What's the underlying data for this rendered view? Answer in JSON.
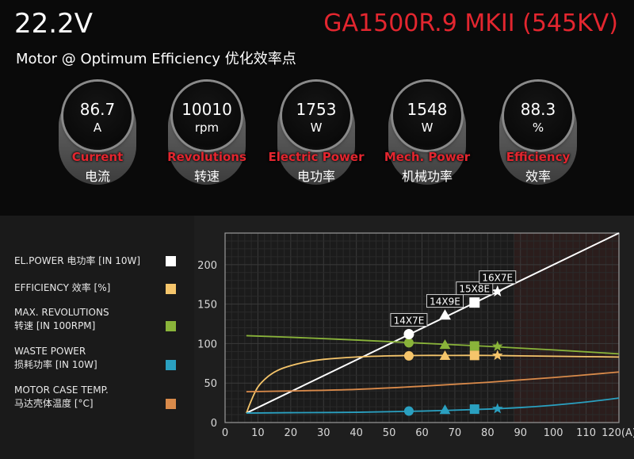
{
  "header": {
    "voltage": "22.2V",
    "model": "GA1500R.9 MKII (545KV)",
    "subtitle": "Motor @ Optimum Efficiency  优化效率点"
  },
  "gauges": [
    {
      "value": "86.7",
      "unit": "A",
      "label_en": "Current",
      "label_cn": "电流"
    },
    {
      "value": "10010",
      "unit": "rpm",
      "label_en": "Revolutions",
      "label_cn": "转速"
    },
    {
      "value": "1753",
      "unit": "W",
      "label_en": "Electric Power",
      "label_cn": "电功率"
    },
    {
      "value": "1548",
      "unit": "W",
      "label_en": "Mech. Power",
      "label_cn": "机械功率"
    },
    {
      "value": "88.3",
      "unit": "%",
      "label_en": "Efficiency",
      "label_cn": "效率"
    }
  ],
  "legend": [
    {
      "line1": "EL.POWER 电功率 [IN 10W]",
      "line2": "",
      "color": "#ffffff"
    },
    {
      "line1": "EFFICIENCY 效率 [%]",
      "line2": "",
      "color": "#f5c56b"
    },
    {
      "line1": "MAX. REVOLUTIONS",
      "line2": "转速 [IN 100RPM]",
      "color": "#8ab43a"
    },
    {
      "line1": "WASTE POWER",
      "line2": "损耗功率 [IN 10W]",
      "color": "#2aa0c0"
    },
    {
      "line1": "MOTOR CASE TEMP.",
      "line2": "马达壳体温度 [°C]",
      "color": "#d98a4a"
    }
  ],
  "chart_data": {
    "type": "line",
    "xlim": [
      0,
      120
    ],
    "ylim": [
      0,
      240
    ],
    "x_ticks": [
      0,
      10,
      20,
      30,
      40,
      50,
      60,
      70,
      80,
      90,
      100,
      110,
      120
    ],
    "x_tick_labels": [
      "0",
      "10",
      "20",
      "30",
      "40",
      "50",
      "60",
      "70",
      "80",
      "90",
      "100",
      "110",
      "120(A)"
    ],
    "y_ticks": [
      0,
      50,
      100,
      150,
      200
    ],
    "grid": true,
    "highlight_region": [
      88,
      120
    ],
    "series": [
      {
        "name": "EL.POWER 电功率 [IN 10W]",
        "color": "#ffffff",
        "x": [
          6.5,
          120
        ],
        "y": [
          12,
          240
        ]
      },
      {
        "name": "EFFICIENCY 效率 [%]",
        "color": "#f5c56b",
        "x": [
          6.5,
          8,
          10,
          13,
          16,
          20,
          25,
          30,
          40,
          50,
          60,
          70,
          80,
          90,
          100,
          110,
          120
        ],
        "y": [
          12,
          28,
          45,
          58,
          66,
          72,
          77,
          80,
          83,
          84.5,
          85,
          85,
          85,
          84.5,
          84,
          83.5,
          83
        ]
      },
      {
        "name": "MAX. REVOLUTIONS 转速 [IN 100RPM]",
        "color": "#8ab43a",
        "x": [
          6.5,
          20,
          40,
          60,
          80,
          100,
          120
        ],
        "y": [
          110,
          108,
          104.5,
          100.5,
          96.5,
          92,
          87
        ]
      },
      {
        "name": "WASTE POWER 损耗功率 [IN 10W]",
        "color": "#2aa0c0",
        "x": [
          6.5,
          20,
          40,
          60,
          80,
          90,
          100,
          110,
          120
        ],
        "y": [
          12,
          12.5,
          13,
          14.5,
          17,
          19,
          22,
          26,
          31
        ]
      },
      {
        "name": "MOTOR CASE TEMP. 马达壳体温度 [°C]",
        "color": "#d98a4a",
        "x": [
          6.5,
          20,
          40,
          60,
          80,
          100,
          120
        ],
        "y": [
          39,
          40,
          42,
          46,
          51,
          57,
          64
        ]
      }
    ],
    "markers": [
      {
        "prop": "14X7E",
        "shape": "circle",
        "x": 56,
        "el_power": 112,
        "efficiency": 84.5,
        "revolutions": 101,
        "waste_power": 14.5
      },
      {
        "prop": "14X9E",
        "shape": "triangle",
        "x": 67,
        "el_power": 136,
        "efficiency": 84.5,
        "revolutions": 98.5,
        "waste_power": 16
      },
      {
        "prop": "15X8E",
        "shape": "square",
        "x": 76,
        "el_power": 152,
        "efficiency": 85,
        "revolutions": 97,
        "waste_power": 17
      },
      {
        "prop": "16X7E",
        "shape": "star",
        "x": 83,
        "el_power": 166,
        "efficiency": 85,
        "revolutions": 96.5,
        "waste_power": 17.5
      }
    ]
  }
}
